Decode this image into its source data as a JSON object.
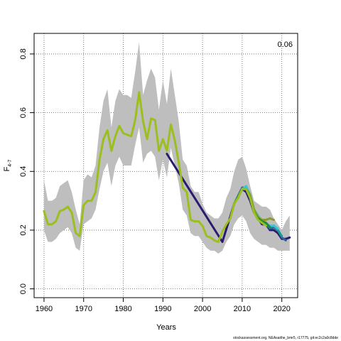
{
  "chart_data": {
    "type": "line",
    "xlabel": "Years",
    "ylabel_main": "F",
    "ylabel_sub": "4-7",
    "xlim": [
      1957.5,
      2024
    ],
    "ylim": [
      -0.03,
      0.87
    ],
    "xticks": [
      1960,
      1970,
      1980,
      1990,
      2000,
      2010,
      2020
    ],
    "yticks": [
      0.0,
      0.2,
      0.4,
      0.6,
      0.8
    ],
    "ytick_labels": [
      "0.0",
      "0.2",
      "0.4",
      "0.6",
      "0.8"
    ],
    "grid": true,
    "corner_annotation": "0.06",
    "footer": "stockassessment.org, NEAsaithe_bmr5, r17775, git:ec2c2a0c8dde",
    "ci_band_color": "#bebebe",
    "years": [
      1960,
      1961,
      1962,
      1963,
      1964,
      1965,
      1966,
      1967,
      1968,
      1969,
      1970,
      1971,
      1972,
      1973,
      1974,
      1975,
      1976,
      1977,
      1978,
      1979,
      1980,
      1981,
      1982,
      1983,
      1984,
      1985,
      1986,
      1987,
      1988,
      1989,
      1990,
      1991,
      1992,
      1993,
      1994,
      1995,
      1996,
      1997,
      1998,
      1999,
      2000,
      2001,
      2002,
      2003,
      2004,
      2005,
      2006,
      2007,
      2008,
      2009,
      2010,
      2011,
      2012,
      2013,
      2014,
      2015,
      2016,
      2017
    ],
    "upper": [
      0.37,
      0.3,
      0.3,
      0.31,
      0.35,
      0.36,
      0.37,
      0.33,
      0.27,
      0.22,
      0.37,
      0.39,
      0.38,
      0.42,
      0.55,
      0.64,
      0.68,
      0.55,
      0.64,
      0.68,
      0.66,
      0.66,
      0.65,
      0.74,
      0.84,
      0.66,
      0.71,
      0.75,
      0.72,
      0.61,
      0.71,
      0.63,
      0.75,
      0.66,
      0.57,
      0.44,
      0.42,
      0.35,
      0.33,
      0.33,
      0.29,
      0.26,
      0.25,
      0.24,
      0.24,
      0.26,
      0.31,
      0.34,
      0.4,
      0.44,
      0.45,
      0.41,
      0.35,
      0.3,
      0.29,
      0.28,
      0.28,
      0.27
    ],
    "lower": [
      0.2,
      0.16,
      0.16,
      0.17,
      0.19,
      0.2,
      0.21,
      0.19,
      0.14,
      0.13,
      0.22,
      0.23,
      0.24,
      0.27,
      0.34,
      0.4,
      0.43,
      0.35,
      0.42,
      0.45,
      0.42,
      0.42,
      0.42,
      0.49,
      0.55,
      0.43,
      0.46,
      0.47,
      0.45,
      0.37,
      0.44,
      0.38,
      0.48,
      0.42,
      0.36,
      0.27,
      0.25,
      0.19,
      0.18,
      0.18,
      0.16,
      0.14,
      0.13,
      0.13,
      0.12,
      0.13,
      0.16,
      0.18,
      0.22,
      0.24,
      0.25,
      0.23,
      0.19,
      0.17,
      0.16,
      0.15,
      0.15,
      0.14
    ],
    "band_tail": [
      {
        "x": 2018,
        "upper": 0.24,
        "lower": 0.14
      },
      {
        "x": 2019,
        "upper": 0.22,
        "lower": 0.13
      },
      {
        "x": 2020,
        "upper": 0.2,
        "lower": 0.13
      },
      {
        "x": 2021,
        "upper": 0.23,
        "lower": 0.13
      },
      {
        "x": 2022,
        "upper": 0.25,
        "lower": 0.13
      }
    ],
    "series": [
      {
        "color": "#2b1b6e",
        "x": [
          1991,
          2005,
          2008,
          2010,
          2011,
          2012,
          2013,
          2014,
          2015,
          2016,
          2017,
          2018,
          2019,
          2020,
          2021,
          2022
        ],
        "values": [
          0.46,
          0.16,
          0.29,
          0.34,
          0.33,
          0.3,
          0.26,
          0.24,
          0.22,
          0.22,
          0.2,
          0.2,
          0.19,
          0.17,
          0.17,
          0.175
        ]
      },
      {
        "color": "#2e5fa5",
        "x": [
          2008,
          2010,
          2011,
          2012,
          2013,
          2014,
          2015,
          2016,
          2017,
          2018,
          2019,
          2020,
          2021
        ],
        "values": [
          0.29,
          0.345,
          0.345,
          0.31,
          0.27,
          0.245,
          0.225,
          0.22,
          0.205,
          0.21,
          0.2,
          0.175,
          0.165
        ]
      },
      {
        "color": "#1a9c8f",
        "x": [
          2008,
          2010,
          2011,
          2012,
          2013,
          2014,
          2015,
          2016,
          2017,
          2018,
          2019,
          2020
        ],
        "values": [
          0.29,
          0.34,
          0.34,
          0.31,
          0.26,
          0.24,
          0.23,
          0.225,
          0.21,
          0.215,
          0.2,
          0.18
        ]
      },
      {
        "color": "#38c5d6",
        "x": [
          2008,
          2010,
          2011,
          2012,
          2013,
          2014,
          2015,
          2016,
          2017,
          2018,
          2019
        ],
        "values": [
          0.29,
          0.34,
          0.35,
          0.32,
          0.27,
          0.25,
          0.23,
          0.22,
          0.215,
          0.215,
          0.205
        ]
      },
      {
        "color": "#8a9a2a",
        "x": [
          2008,
          2010,
          2011,
          2012,
          2013,
          2014,
          2015,
          2016,
          2017,
          2018
        ],
        "values": [
          0.29,
          0.34,
          0.34,
          0.32,
          0.27,
          0.245,
          0.235,
          0.235,
          0.24,
          0.235
        ]
      },
      {
        "color": "#1e8a3e",
        "x": [
          2008,
          2010,
          2011,
          2012,
          2013,
          2014,
          2015,
          2016,
          2017
        ],
        "values": [
          0.29,
          0.34,
          0.34,
          0.31,
          0.26,
          0.24,
          0.23,
          0.225,
          0.21
        ]
      },
      {
        "color": "#9bbf1e",
        "x": [
          1960,
          1961,
          1962,
          1963,
          1964,
          1965,
          1966,
          1967,
          1968,
          1969,
          1970,
          1971,
          1972,
          1973,
          1974,
          1975,
          1976,
          1977,
          1978,
          1979,
          1980,
          1981,
          1982,
          1983,
          1984,
          1985,
          1986,
          1987,
          1988,
          1989,
          1990,
          1991,
          1992,
          1993,
          1994,
          1995,
          1996,
          1997,
          1998,
          1999,
          2000,
          2001,
          2002,
          2003,
          2004,
          2005,
          2006,
          2007,
          2008,
          2009,
          2010,
          2011,
          2012,
          2013,
          2014,
          2015,
          2016
        ],
        "values": [
          0.265,
          0.22,
          0.22,
          0.23,
          0.265,
          0.27,
          0.28,
          0.26,
          0.19,
          0.18,
          0.285,
          0.3,
          0.3,
          0.33,
          0.44,
          0.51,
          0.54,
          0.47,
          0.52,
          0.555,
          0.53,
          0.525,
          0.52,
          0.575,
          0.67,
          0.57,
          0.51,
          0.58,
          0.575,
          0.47,
          0.51,
          0.47,
          0.56,
          0.505,
          0.43,
          0.345,
          0.33,
          0.235,
          0.23,
          0.23,
          0.215,
          0.18,
          0.175,
          0.165,
          0.16,
          0.195,
          0.22,
          0.24,
          0.29,
          0.31,
          0.34,
          0.34,
          0.31,
          0.26,
          0.235,
          0.225,
          0.215
        ]
      }
    ]
  }
}
